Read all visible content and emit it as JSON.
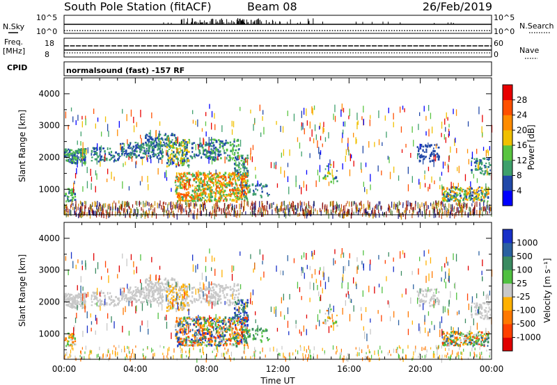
{
  "header": {
    "station": "South Pole Station (fitACF)",
    "beam": "Beam 08",
    "date": "26/Feb/2019"
  },
  "strips": {
    "nsky_label": "N.Sky",
    "nsky_ticks": [
      "10^5",
      "10^0"
    ],
    "nsearch_label": "N.Search",
    "nsearch_ticks": [
      "10^5",
      "10^0"
    ],
    "freq_label_1": "Freq.",
    "freq_label_2": "[MHz]",
    "freq_ticks": [
      "18",
      "8"
    ],
    "nave_label": "Nave",
    "nave_ticks": [
      "60",
      "0"
    ],
    "cpid_label": "CPID",
    "cpid_text": "normalsound (fast) -157 RF"
  },
  "colors": {
    "power": [
      "#0000ff",
      "#2148a8",
      "#3ea06b",
      "#59c440",
      "#f0c000",
      "#ff8c00",
      "#ff5000",
      "#e80000"
    ],
    "velocity": [
      "#1830c8",
      "#2a60a0",
      "#3a8a60",
      "#50c040",
      "#c8c8c8",
      "#ffb000",
      "#ff7800",
      "#ff4000",
      "#e00000"
    ],
    "ground": [
      "#8c1010",
      "#c85020",
      "#1a1a80",
      "#508040",
      "#d09000"
    ]
  },
  "chart_data": [
    {
      "type": "heatmap",
      "name": "power",
      "ylabel": "Slant Range [km]",
      "yticks": [
        "1000",
        "2000",
        "3000",
        "4000"
      ],
      "ylim": [
        200,
        4500
      ],
      "xlim": [
        0,
        24
      ],
      "colorbar_label": "Power [dB]",
      "colorbar_ticks": [
        "4",
        "8",
        "12",
        "16",
        "20",
        "24",
        "28"
      ],
      "colorbar_range": [
        0,
        30
      ]
    },
    {
      "type": "heatmap",
      "name": "velocity",
      "ylabel": "Slant Range [km]",
      "yticks": [
        "1000",
        "2000",
        "3000",
        "4000"
      ],
      "ylim": [
        200,
        4500
      ],
      "xlim": [
        0,
        24
      ],
      "xticks": [
        "00:00",
        "04:00",
        "08:00",
        "12:00",
        "16:00",
        "20:00",
        "00:00"
      ],
      "xlabel": "Time UT",
      "colorbar_label": "Velocity [m s⁻¹]",
      "colorbar_ticks": [
        "1000",
        "500",
        "100",
        "25",
        "-25",
        "-100",
        "-500",
        "-1000"
      ]
    }
  ]
}
